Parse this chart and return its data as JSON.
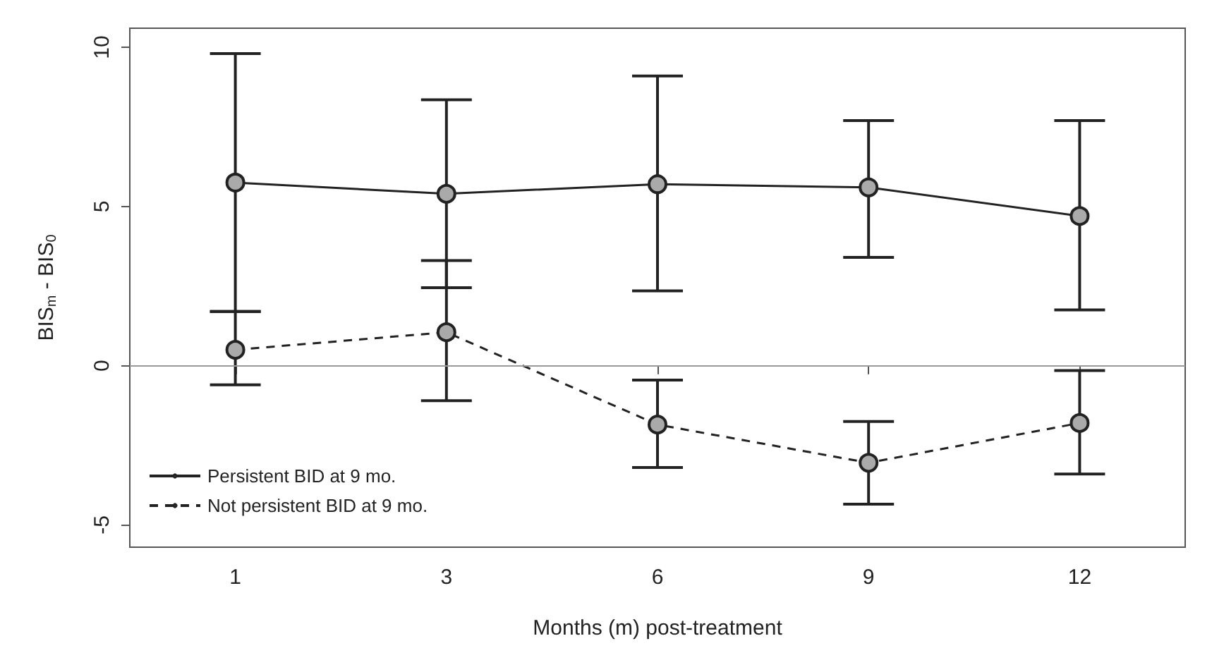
{
  "chart_data": {
    "type": "line",
    "xlabel": "Months (m) post-treatment",
    "ylabel": "BIS$_{m}$ - BIS$_{0}$",
    "categories": [
      "1",
      "3",
      "6",
      "9",
      "12"
    ],
    "series": [
      {
        "name": "Persistent BID at 9 mo.",
        "color": "#222222",
        "line_style": "solid",
        "values": [
          5.75,
          5.4,
          5.7,
          5.6,
          4.7
        ],
        "errors": [
          [
            1.7,
            9.8
          ],
          [
            2.45,
            8.35
          ],
          [
            2.35,
            9.1
          ],
          [
            3.4,
            7.7
          ],
          [
            1.75,
            7.7
          ]
        ]
      },
      {
        "name": "Not persistent BID at 9 mo.",
        "color": "#222222",
        "line_style": "dashed",
        "values": [
          0.5,
          1.05,
          -1.85,
          -3.05,
          -1.8
        ],
        "errors": [
          [
            -0.6,
            1.7
          ],
          [
            -1.1,
            3.3
          ],
          [
            -3.2,
            -0.45
          ],
          [
            -4.35,
            -1.75
          ],
          [
            -3.4,
            -0.15
          ]
        ]
      }
    ],
    "ylim": [
      -5.7,
      10.6
    ],
    "yticks": [
      -5,
      0,
      5,
      10
    ],
    "grid": false,
    "legend": "bottom left",
    "marker": "circle",
    "ref_lines": [
      {
        "axis": "y",
        "value": 0,
        "color": "#999999"
      }
    ]
  }
}
